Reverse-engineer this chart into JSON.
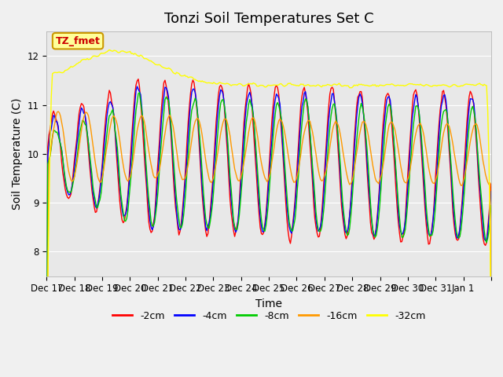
{
  "title": "Tonzi Soil Temperatures Set C",
  "xlabel": "Time",
  "ylabel": "Soil Temperature (C)",
  "ylim": [
    7.5,
    12.5
  ],
  "n_days": 16,
  "xtick_labels": [
    "Dec 17",
    "Dec 18",
    "Dec 19",
    "Dec 20",
    "Dec 21",
    "Dec 22",
    "Dec 23",
    "Dec 24",
    "Dec 25",
    "Dec 26",
    "Dec 27",
    "Dec 28",
    "Dec 29",
    "Dec 30",
    "Dec 31",
    "Jan 1",
    ""
  ],
  "legend_labels": [
    "-2cm",
    "-4cm",
    "-8cm",
    "-16cm",
    "-32cm"
  ],
  "legend_colors": [
    "#ff0000",
    "#0000ff",
    "#00cc00",
    "#ff9900",
    "#ffff00"
  ],
  "annotation_text": "TZ_fmet",
  "annotation_color": "#cc0000",
  "annotation_bg": "#ffff99",
  "annotation_border": "#cc9900",
  "background_color": "#e8e8e8",
  "grid_color": "#ffffff",
  "title_fontsize": 13,
  "axis_fontsize": 10,
  "tick_fontsize": 8.5
}
